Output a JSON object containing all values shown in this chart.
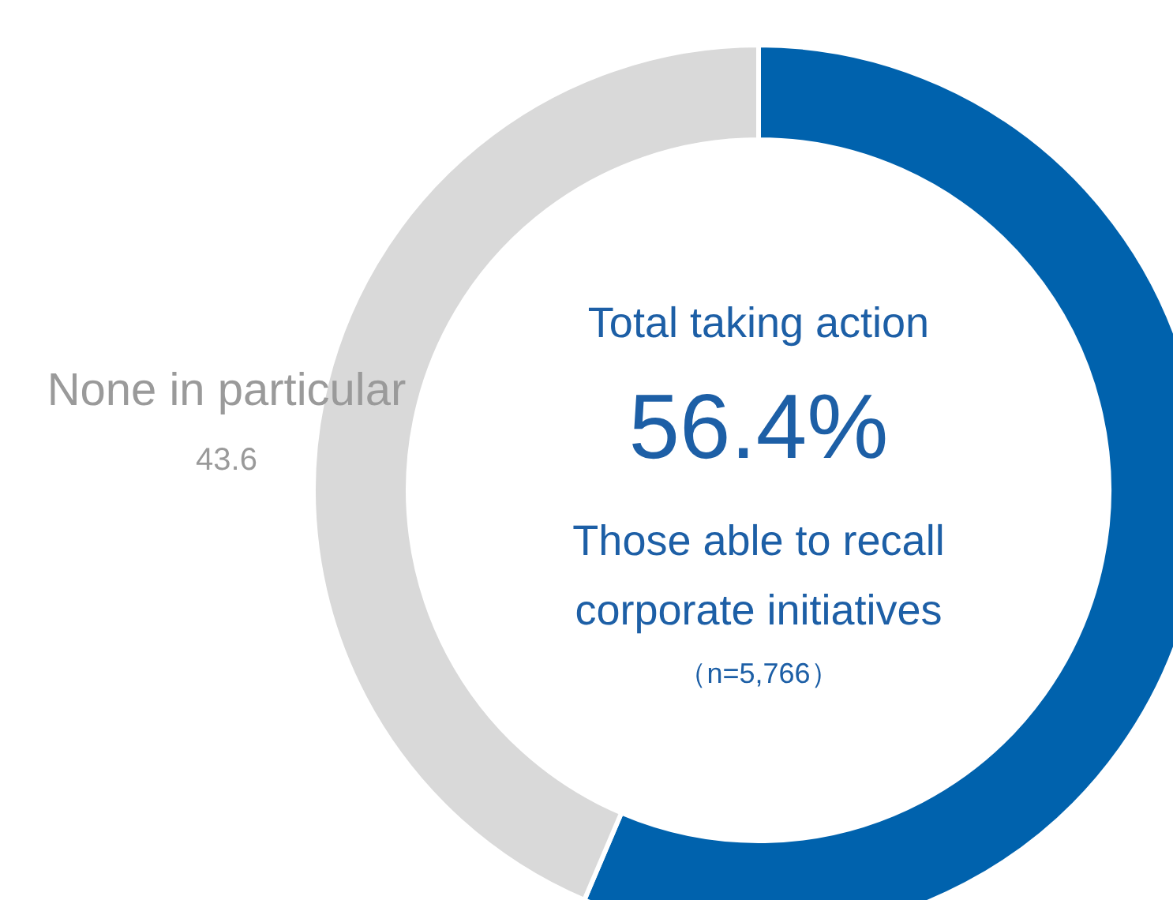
{
  "chart_data": {
    "type": "donut",
    "categories": [
      null,
      "None in particular"
    ],
    "values": [
      56.4,
      43.6
    ],
    "colors": [
      "#0062ad",
      "#d9d9d9"
    ],
    "value_labels": [
      "56.4%",
      "43.6"
    ],
    "annotations": [
      "Total taking action",
      "Those able to recall",
      "corporate initiatives",
      "（n=5,766）"
    ]
  }
}
